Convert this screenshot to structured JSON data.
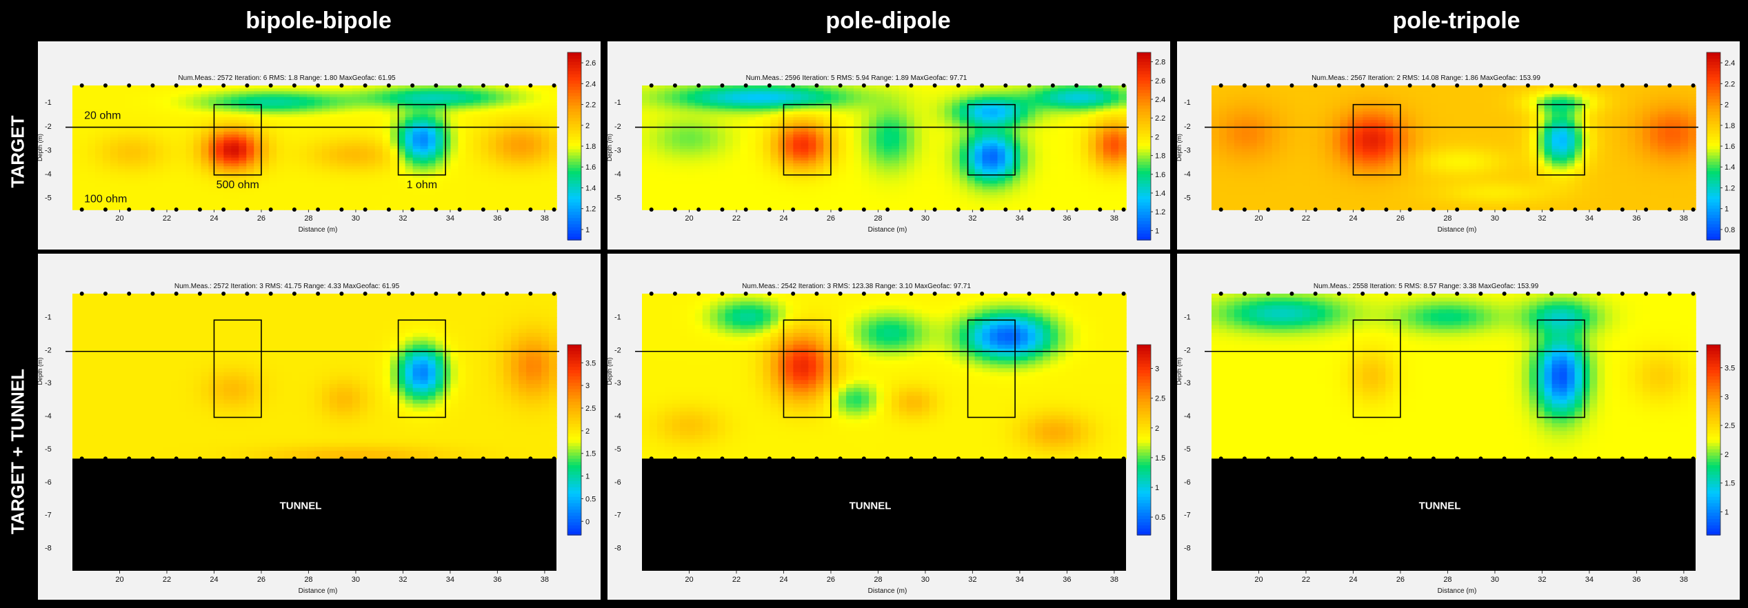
{
  "columns": [
    "bipole-bipole",
    "pole-dipole",
    "pole-tripole"
  ],
  "rows": [
    "TARGET",
    "TARGET + TUNNEL"
  ],
  "colors": {
    "low": "#0033ff",
    "mid": "#ffff00",
    "high": "#dd0000",
    "background": "#000000",
    "panel": "#f2f2f2"
  },
  "model_labels": {
    "shallow": "20 ohm",
    "deep": "100 ohm",
    "block_high": "500 ohm",
    "block_low": "1 ohm"
  },
  "tunnel_label": "TUNNEL",
  "chart_data": [
    {
      "type": "heatmap",
      "row": 0,
      "col": 0,
      "info": "Num.Meas.: 2572   Iteration: 6   RMS: 1.8   Range: 1.80   MaxGeofac: 61.95",
      "xlabel": "Distance (m)",
      "ylabel": "Depth (m)",
      "xlim": [
        18,
        38.5
      ],
      "ylim": [
        -5.5,
        -0.3
      ],
      "xticks": [
        20,
        22,
        24,
        26,
        28,
        30,
        32,
        34,
        36,
        38
      ],
      "yticks": [
        -1,
        -2,
        -3,
        -4,
        -5
      ],
      "colorbar": {
        "ticks": [
          "2.6",
          "2.4",
          "2.2",
          "2",
          "1.8",
          "1.6",
          "1.4",
          "1.2",
          "1"
        ],
        "min": 0.9,
        "max": 2.7
      },
      "field": {
        "base": 0.52,
        "blobs": [
          [
            24.8,
            -3.0,
            1.2,
            0.85,
            0.44
          ],
          [
            32.8,
            -2.6,
            1.0,
            1.0,
            -0.4
          ],
          [
            26.5,
            -1.0,
            3.0,
            0.45,
            -0.2
          ],
          [
            33.5,
            -0.8,
            3.0,
            0.45,
            -0.22
          ],
          [
            30.0,
            -3.2,
            2.0,
            0.7,
            0.12
          ],
          [
            37.0,
            -2.8,
            1.5,
            0.9,
            0.18
          ],
          [
            20.5,
            -3.1,
            1.5,
            0.8,
            0.1
          ]
        ]
      }
    },
    {
      "type": "heatmap",
      "row": 0,
      "col": 1,
      "info": "Num.Meas.: 2596   Iteration: 5   RMS: 5.94   Range: 1.89   MaxGeofac: 97.71",
      "xlabel": "Distance (m)",
      "ylabel": "Depth (m)",
      "xlim": [
        18,
        38.5
      ],
      "ylim": [
        -5.5,
        -0.3
      ],
      "xticks": [
        20,
        22,
        24,
        26,
        28,
        30,
        32,
        34,
        36,
        38
      ],
      "yticks": [
        -1,
        -2,
        -3,
        -4,
        -5
      ],
      "colorbar": {
        "ticks": [
          "2.8",
          "2.6",
          "2.4",
          "2.2",
          "2",
          "1.8",
          "1.6",
          "1.4",
          "1.2",
          "1"
        ],
        "min": 0.9,
        "max": 2.9
      },
      "field": {
        "base": 0.5,
        "blobs": [
          [
            24.8,
            -2.8,
            1.2,
            1.0,
            0.38
          ],
          [
            32.8,
            -3.3,
            1.1,
            1.0,
            -0.42
          ],
          [
            32.8,
            -1.4,
            1.5,
            0.6,
            -0.3
          ],
          [
            23.0,
            -0.8,
            3.5,
            0.5,
            -0.28
          ],
          [
            36.5,
            -0.8,
            2.0,
            0.5,
            -0.25
          ],
          [
            28.5,
            -2.5,
            1.0,
            1.2,
            -0.15
          ],
          [
            38.0,
            -2.8,
            1.0,
            1.0,
            0.32
          ],
          [
            20.0,
            -2.5,
            1.5,
            0.8,
            -0.08
          ]
        ]
      }
    },
    {
      "type": "heatmap",
      "row": 0,
      "col": 2,
      "info": "Num.Meas.: 2567   Iteration: 2   RMS: 14.08   Range: 1.86   MaxGeofac: 153.99",
      "xlabel": "Distance (m)",
      "ylabel": "Depth (m)",
      "xlim": [
        18,
        38.5
      ],
      "ylim": [
        -5.5,
        -0.3
      ],
      "xticks": [
        20,
        22,
        24,
        26,
        28,
        30,
        32,
        34,
        36,
        38
      ],
      "yticks": [
        -1,
        -2,
        -3,
        -4,
        -5
      ],
      "colorbar": {
        "ticks": [
          "2.4",
          "2.2",
          "2",
          "1.8",
          "1.6",
          "1.4",
          "1.2",
          "1",
          "0.8"
        ],
        "min": 0.7,
        "max": 2.5
      },
      "field": {
        "base": 0.62,
        "blobs": [
          [
            24.8,
            -2.6,
            1.5,
            1.2,
            0.3
          ],
          [
            32.8,
            -2.6,
            1.0,
            1.2,
            -0.42
          ],
          [
            32.8,
            -1.0,
            1.5,
            0.5,
            -0.2
          ],
          [
            37.5,
            -2.3,
            1.5,
            1.2,
            0.18
          ],
          [
            19.5,
            -2.3,
            1.5,
            1.2,
            0.12
          ],
          [
            28.5,
            -3.5,
            2.0,
            0.6,
            -0.1
          ],
          [
            30.0,
            -4.8,
            2.5,
            0.5,
            -0.08
          ]
        ]
      }
    },
    {
      "type": "heatmap",
      "row": 1,
      "col": 0,
      "info": "Num.Meas.: 2572   Iteration: 3   RMS: 41.75   Range: 4.33   MaxGeofac: 61.95",
      "xlabel": "Distance (m)",
      "ylabel": "Depth (m)",
      "xlim": [
        18,
        38.5
      ],
      "ylim": [
        -8.7,
        -0.3
      ],
      "xticks": [
        20,
        22,
        24,
        26,
        28,
        30,
        32,
        34,
        36,
        38
      ],
      "yticks": [
        -1,
        -2,
        -3,
        -4,
        -5,
        -6,
        -7,
        -8
      ],
      "colorbar": {
        "ticks": [
          "3.5",
          "3",
          "2.5",
          "2",
          "1.5",
          "1",
          "0.5",
          "0"
        ],
        "min": -0.3,
        "max": 3.9
      },
      "field": {
        "base": 0.54,
        "blobs": [
          [
            32.8,
            -2.7,
            1.0,
            0.8,
            -0.42
          ],
          [
            37.5,
            -2.5,
            1.2,
            1.0,
            0.2
          ],
          [
            24.8,
            -3.2,
            1.2,
            0.6,
            0.1
          ],
          [
            29.5,
            -3.5,
            1.0,
            0.6,
            0.1
          ],
          [
            30.0,
            -5.2,
            4.0,
            0.3,
            0.1
          ]
        ]
      },
      "tunnel_top": -5.3
    },
    {
      "type": "heatmap",
      "row": 1,
      "col": 1,
      "info": "Num.Meas.: 2542   Iteration: 3   RMS: 123.38   Range: 3.10   MaxGeofac: 97.71",
      "xlabel": "Distance (m)",
      "ylabel": "Depth (m)",
      "xlim": [
        18,
        38.5
      ],
      "ylim": [
        -8.7,
        -0.3
      ],
      "xticks": [
        20,
        22,
        24,
        26,
        28,
        30,
        32,
        34,
        36,
        38
      ],
      "yticks": [
        -1,
        -2,
        -3,
        -4,
        -5,
        -6,
        -7,
        -8
      ],
      "colorbar": {
        "ticks": [
          "3",
          "2.5",
          "2",
          "1.5",
          "1",
          "0.5"
        ],
        "min": 0.2,
        "max": 3.4
      },
      "field": {
        "base": 0.52,
        "blobs": [
          [
            24.8,
            -2.5,
            1.3,
            1.0,
            0.38
          ],
          [
            33.5,
            -1.6,
            1.8,
            0.7,
            -0.45
          ],
          [
            22.5,
            -1.0,
            1.5,
            0.5,
            -0.2
          ],
          [
            28.5,
            -1.5,
            1.5,
            0.6,
            -0.18
          ],
          [
            27.0,
            -3.5,
            1.0,
            0.5,
            -0.15
          ],
          [
            29.5,
            -3.6,
            1.0,
            0.5,
            0.12
          ],
          [
            35.5,
            -4.5,
            1.5,
            0.6,
            0.15
          ],
          [
            20.0,
            -4.3,
            1.5,
            0.6,
            0.1
          ]
        ]
      },
      "tunnel_top": -5.3
    },
    {
      "type": "heatmap",
      "row": 1,
      "col": 2,
      "info": "Num.Meas.: 2558   Iteration: 5   RMS: 8.57   Range: 3.38   MaxGeofac: 153.99",
      "xlabel": "Distance (m)",
      "ylabel": "Depth (m)",
      "xlim": [
        18,
        38.5
      ],
      "ylim": [
        -8.7,
        -0.3
      ],
      "xticks": [
        20,
        22,
        24,
        26,
        28,
        30,
        32,
        34,
        36,
        38
      ],
      "yticks": [
        -1,
        -2,
        -3,
        -4,
        -5,
        -6,
        -7,
        -8
      ],
      "colorbar": {
        "ticks": [
          "3.5",
          "3",
          "2.5",
          "2",
          "1.5",
          "1"
        ],
        "min": 0.6,
        "max": 3.9
      },
      "field": {
        "base": 0.5,
        "blobs": [
          [
            32.8,
            -2.8,
            1.0,
            1.1,
            -0.45
          ],
          [
            32.8,
            -1.0,
            1.5,
            0.5,
            -0.2
          ],
          [
            24.8,
            -2.8,
            1.0,
            0.8,
            0.12
          ],
          [
            21.0,
            -0.9,
            2.5,
            0.5,
            -0.22
          ],
          [
            28.0,
            -1.0,
            2.0,
            0.45,
            -0.15
          ],
          [
            37.0,
            -2.8,
            1.2,
            0.8,
            0.1
          ]
        ]
      },
      "tunnel_top": -5.3
    }
  ]
}
